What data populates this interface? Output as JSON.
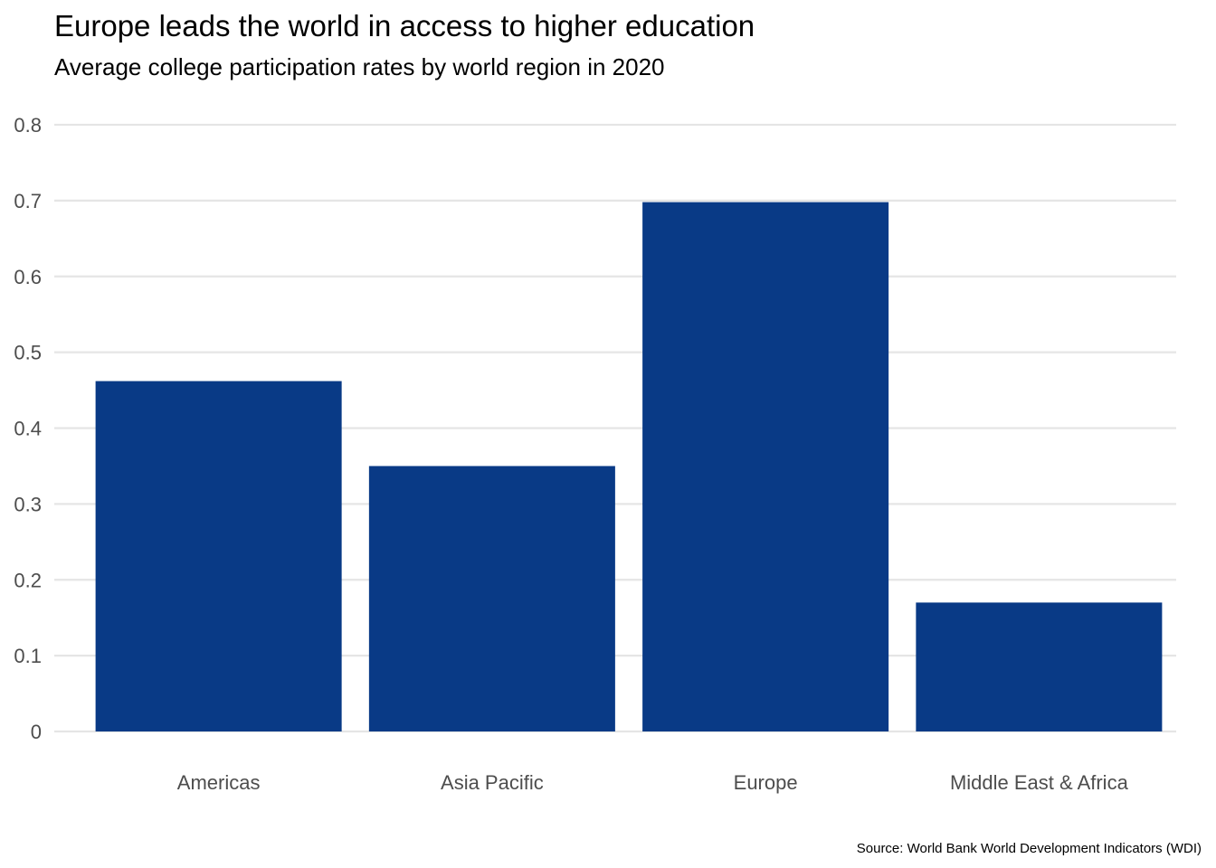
{
  "chart_data": {
    "type": "bar",
    "title": "Europe leads the world in access to higher education",
    "subtitle": "Average college participation rates by world region in 2020",
    "caption": "Source: World Bank World Development Indicators (WDI)",
    "xlabel": "",
    "ylabel": "",
    "categories": [
      "Americas",
      "Asia Pacific",
      "Europe",
      "Middle East & Africa"
    ],
    "values": [
      0.462,
      0.35,
      0.698,
      0.17
    ],
    "ylim": [
      0,
      0.8
    ],
    "y_ticks": [
      "0",
      "0.1",
      "0.2",
      "0.3",
      "0.4",
      "0.5",
      "0.6",
      "0.7",
      "0.8"
    ],
    "grid": "horizontal major",
    "legend": "none",
    "bar_color": "#093a86",
    "gridline_color": "#e5e5e5"
  }
}
